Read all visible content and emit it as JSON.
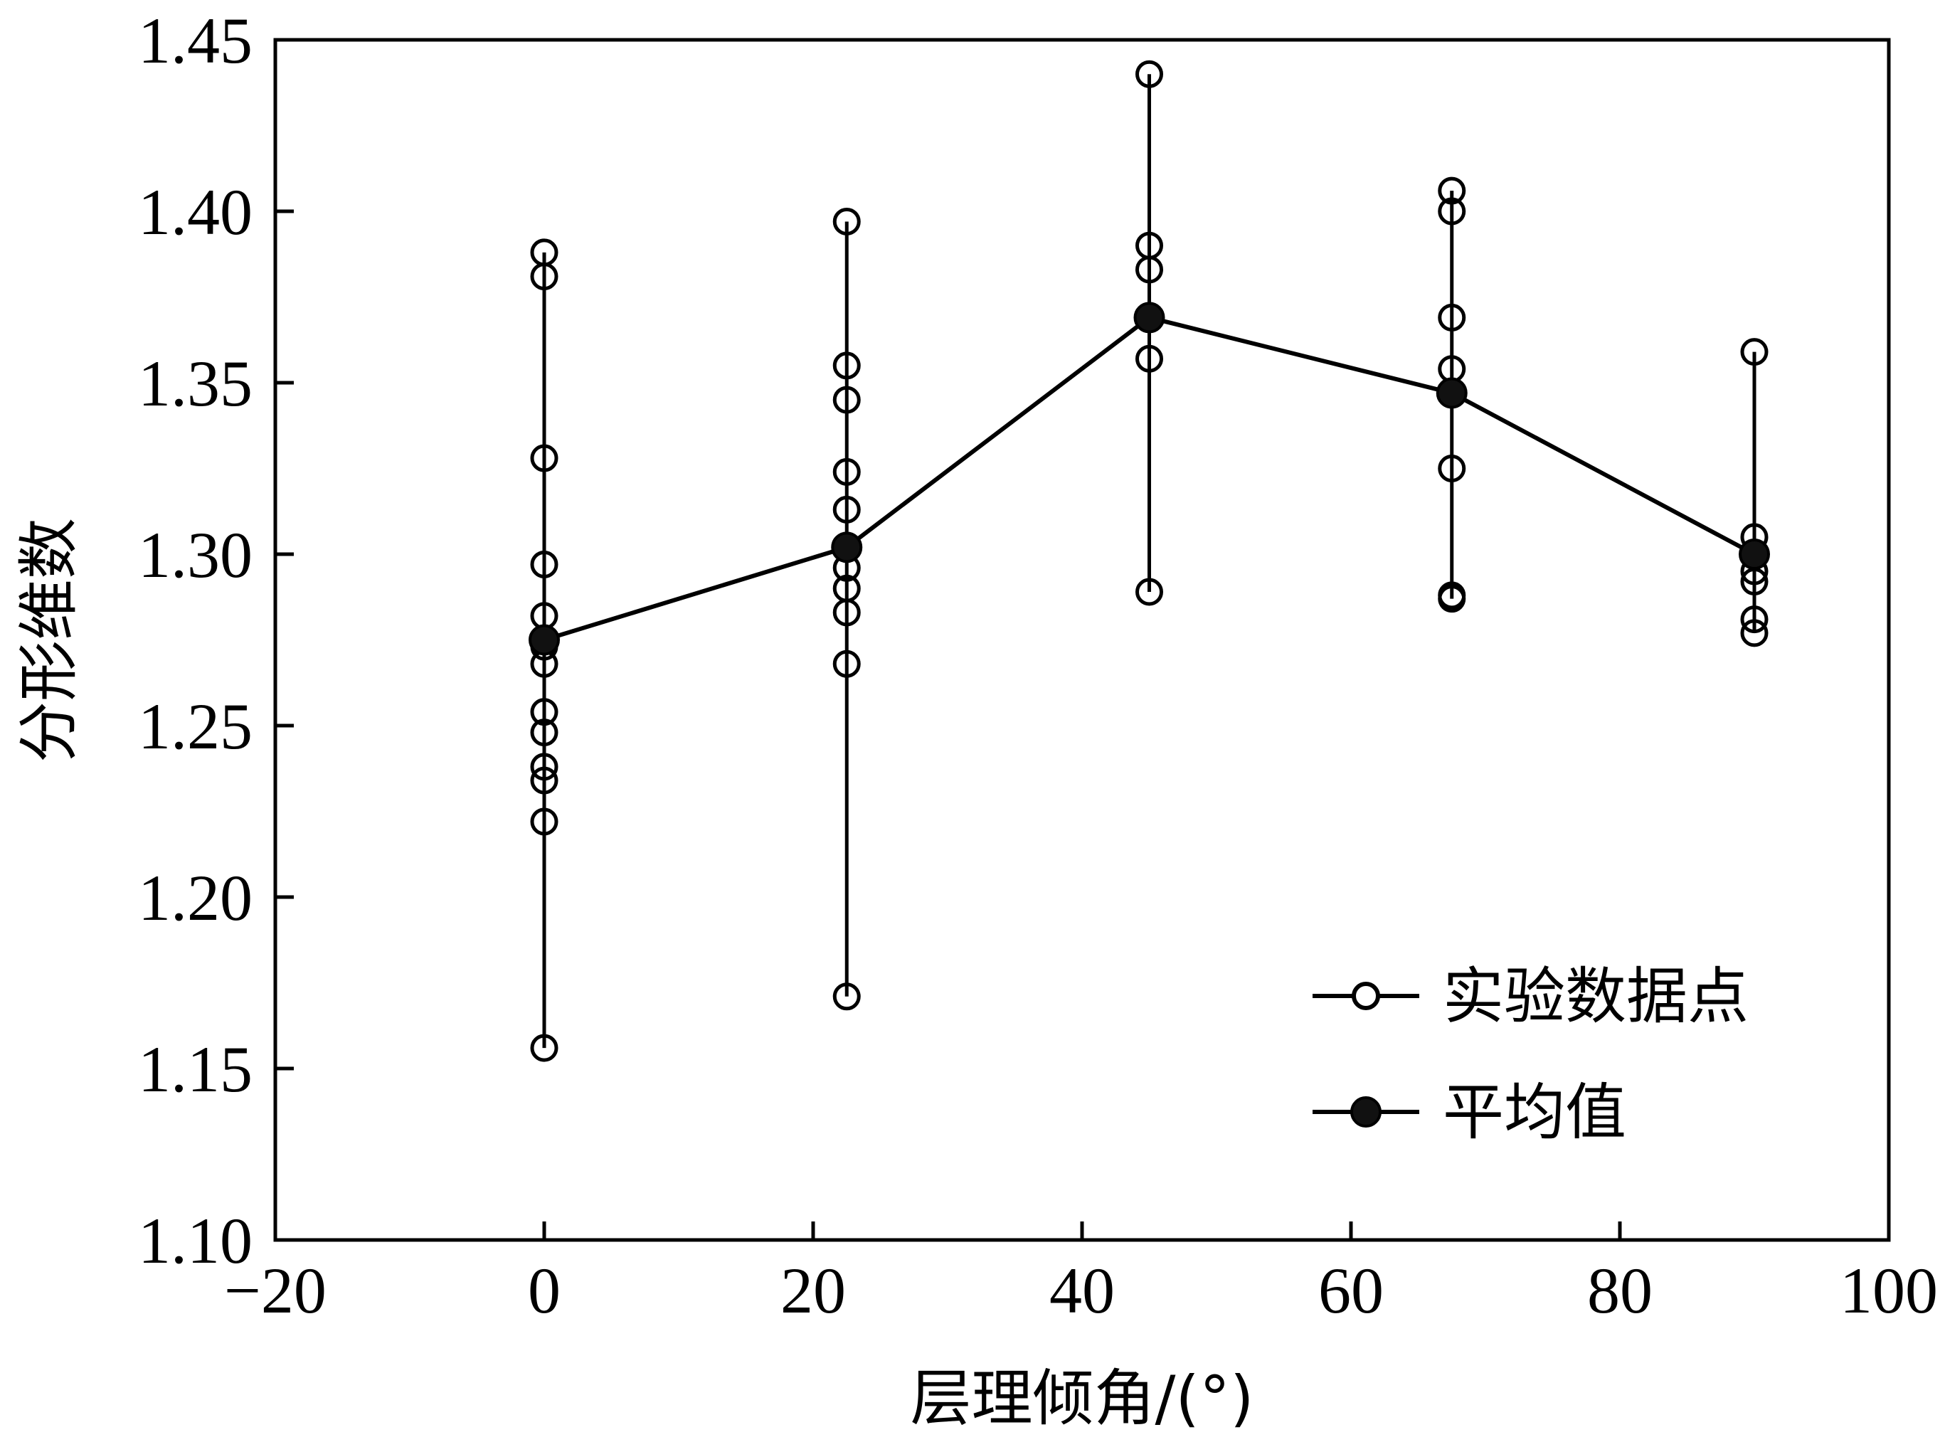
{
  "chart_data": {
    "type": "scatter",
    "xlabel": "层理倾角/(°)",
    "ylabel": "分形维数",
    "xlim": [
      -20,
      100
    ],
    "ylim": [
      1.1,
      1.45
    ],
    "x_ticks": [
      -20,
      0,
      20,
      40,
      60,
      80,
      100
    ],
    "x_tick_labels": [
      "−20",
      "0",
      "20",
      "40",
      "60",
      "80",
      "100"
    ],
    "y_ticks": [
      1.1,
      1.15,
      1.2,
      1.25,
      1.3,
      1.35,
      1.4,
      1.45
    ],
    "y_tick_labels": [
      "1.10",
      "1.15",
      "1.20",
      "1.25",
      "1.30",
      "1.35",
      "1.40",
      "1.45"
    ],
    "grid": false,
    "legend_position": "bottom-right",
    "series": [
      {
        "name": "实验数据点",
        "marker": "open-circle",
        "groups": [
          {
            "x": 0,
            "values": [
              1.388,
              1.381,
              1.328,
              1.297,
              1.282,
              1.273,
              1.268,
              1.254,
              1.248,
              1.238,
              1.234,
              1.222,
              1.156
            ]
          },
          {
            "x": 22.5,
            "values": [
              1.397,
              1.355,
              1.345,
              1.324,
              1.313,
              1.302,
              1.296,
              1.29,
              1.283,
              1.268,
              1.171
            ]
          },
          {
            "x": 45,
            "values": [
              1.44,
              1.39,
              1.383,
              1.357,
              1.289
            ]
          },
          {
            "x": 67.5,
            "values": [
              1.406,
              1.4,
              1.369,
              1.354,
              1.325,
              1.288,
              1.287
            ]
          },
          {
            "x": 90,
            "values": [
              1.359,
              1.305,
              1.295,
              1.292,
              1.281,
              1.277
            ]
          }
        ]
      },
      {
        "name": "平均值",
        "marker": "filled-circle",
        "x": [
          0,
          22.5,
          45,
          67.5,
          90
        ],
        "values": [
          1.275,
          1.302,
          1.369,
          1.347,
          1.3
        ]
      }
    ]
  }
}
